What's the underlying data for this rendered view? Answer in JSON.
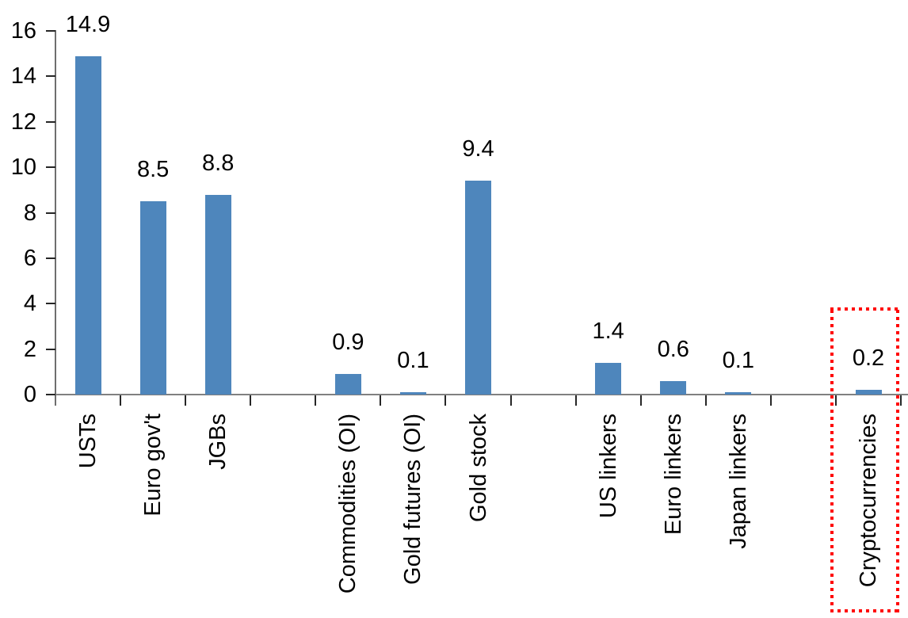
{
  "chart_data": {
    "type": "bar",
    "title": "",
    "xlabel": "",
    "ylabel": "",
    "categories": [
      "USTs",
      "Euro gov't",
      "JGBs",
      "Commodities (OI)",
      "Gold futures (OI)",
      "Gold stock",
      "US linkers",
      "Euro linkers",
      "Japan linkers",
      "Cryptocurrencies"
    ],
    "values": [
      14.9,
      8.5,
      8.8,
      0.9,
      0.1,
      9.4,
      1.4,
      0.6,
      0.1,
      0.2
    ],
    "slots": [
      {
        "label": "USTs",
        "value": 14.9,
        "value_label": "14.9",
        "highlighted": false
      },
      {
        "label": "Euro gov't",
        "value": 8.5,
        "value_label": "8.5",
        "highlighted": false
      },
      {
        "label": "JGBs",
        "value": 8.8,
        "value_label": "8.8",
        "highlighted": false
      },
      null,
      {
        "label": "Commodities (OI)",
        "value": 0.9,
        "value_label": "0.9",
        "highlighted": false
      },
      {
        "label": "Gold futures (OI)",
        "value": 0.1,
        "value_label": "0.1",
        "highlighted": false
      },
      {
        "label": "Gold stock",
        "value": 9.4,
        "value_label": "9.4",
        "highlighted": false
      },
      null,
      {
        "label": "US linkers",
        "value": 1.4,
        "value_label": "1.4",
        "highlighted": false
      },
      {
        "label": "Euro linkers",
        "value": 0.6,
        "value_label": "0.6",
        "highlighted": false
      },
      {
        "label": "Japan linkers",
        "value": 0.1,
        "value_label": "0.1",
        "highlighted": false
      },
      null,
      {
        "label": "Cryptocurrencies",
        "value": 0.2,
        "value_label": "0.2",
        "highlighted": true
      }
    ],
    "ylim": [
      0,
      16
    ],
    "y_tick_step": 2,
    "y_tick_labels": [
      "0",
      "2",
      "4",
      "6",
      "8",
      "10",
      "12",
      "14",
      "16"
    ],
    "grid": false,
    "legend": false,
    "value_labels_shown": true,
    "x_labels_rotated_degrees": 90,
    "colors": {
      "bar": "#4e86bc",
      "axis_line": "#808080",
      "tick": "#262626",
      "text": "#000000",
      "highlight_box": "#ff0000",
      "background": "#ffffff"
    }
  }
}
